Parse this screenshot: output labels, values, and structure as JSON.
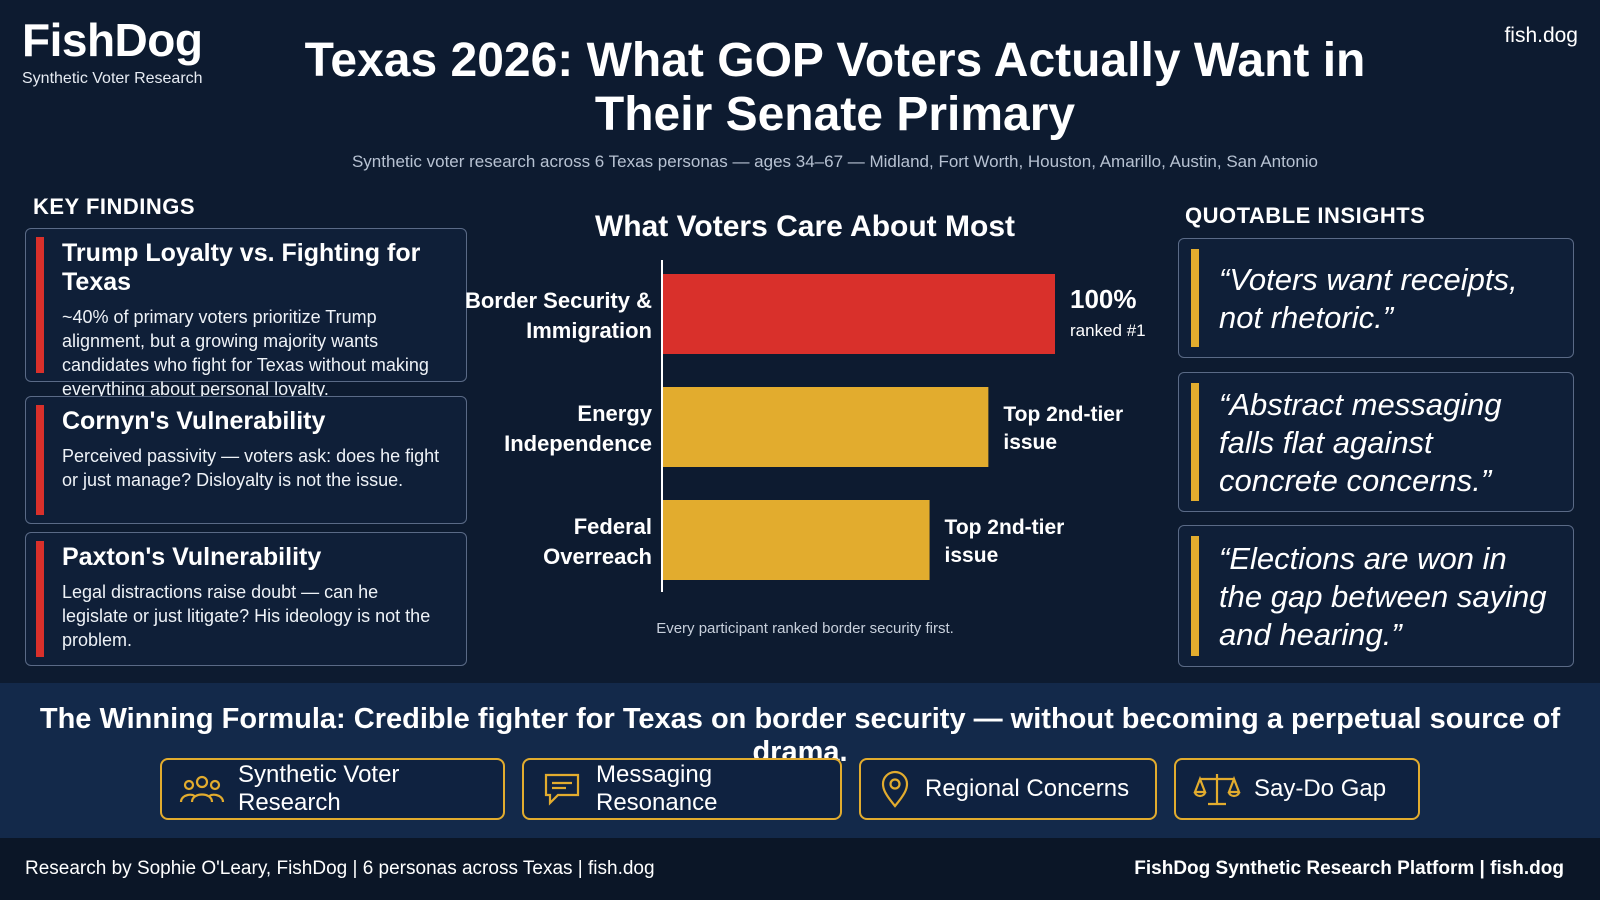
{
  "brand": {
    "name": "FishDog",
    "tagline": "Synthetic Voter Research",
    "site": "fish.dog"
  },
  "header": {
    "title": "Texas 2026: What GOP Voters Actually Want in Their Senate Primary",
    "subtitle": "Synthetic voter research across 6 Texas personas — ages 34–67 — Midland, Fort Worth, Houston, Amarillo, Austin, San Antonio"
  },
  "key_findings": {
    "heading": "KEY FINDINGS",
    "items": [
      {
        "title": "Trump Loyalty vs. Fighting for Texas",
        "text": "~40% of primary voters prioritize Trump alignment, but a growing majority wants candidates who fight for Texas without making everything about personal loyalty."
      },
      {
        "title": "Cornyn's Vulnerability",
        "text": "Perceived passivity — voters ask: does he fight or just manage? Disloyalty is not the issue."
      },
      {
        "title": "Paxton's Vulnerability",
        "text": "Legal distractions raise doubt — can he legislate or just litigate? His ideology is not the problem."
      }
    ]
  },
  "chart_data": {
    "type": "bar",
    "orientation": "horizontal",
    "title": "What Voters Care About Most",
    "categories": [
      "Border Security & Immigration",
      "Energy Independence",
      "Federal Overreach"
    ],
    "values": [
      100,
      83,
      68
    ],
    "value_labels": [
      [
        "100%",
        "ranked #1"
      ],
      [
        "Top 2nd-tier",
        "issue"
      ],
      [
        "Top 2nd-tier",
        "issue"
      ]
    ],
    "colors": [
      "#d9302b",
      "#e2ac2e",
      "#e2ac2e"
    ],
    "xlim": [
      0,
      100
    ],
    "grid": false,
    "note": "Every participant ranked border security first."
  },
  "quotable_insights": {
    "heading": "QUOTABLE INSIGHTS",
    "quotes": [
      "“Voters want receipts, not rhetoric.”",
      "“Abstract messaging falls flat against concrete concerns.”",
      "“Elections are won in the gap between saying and hearing.”"
    ]
  },
  "formula": "The Winning Formula:  Credible fighter for Texas on border security — without becoming a perpetual source of drama.",
  "tags": [
    {
      "label": "Synthetic Voter Research",
      "icon": "people-group-icon"
    },
    {
      "label": "Messaging Resonance",
      "icon": "speech-bubble-icon"
    },
    {
      "label": "Regional Concerns",
      "icon": "map-pin-icon"
    },
    {
      "label": "Say-Do Gap",
      "icon": "balance-scale-icon"
    }
  ],
  "footer": {
    "left": "Research by Sophie O'Leary, FishDog  |  6 personas across Texas  |  fish.dog",
    "right": "FishDog Synthetic Research Platform  |  fish.dog"
  },
  "colors": {
    "background": "#0d1b30",
    "accent_red": "#d9302b",
    "accent_gold": "#e2ac2e"
  }
}
